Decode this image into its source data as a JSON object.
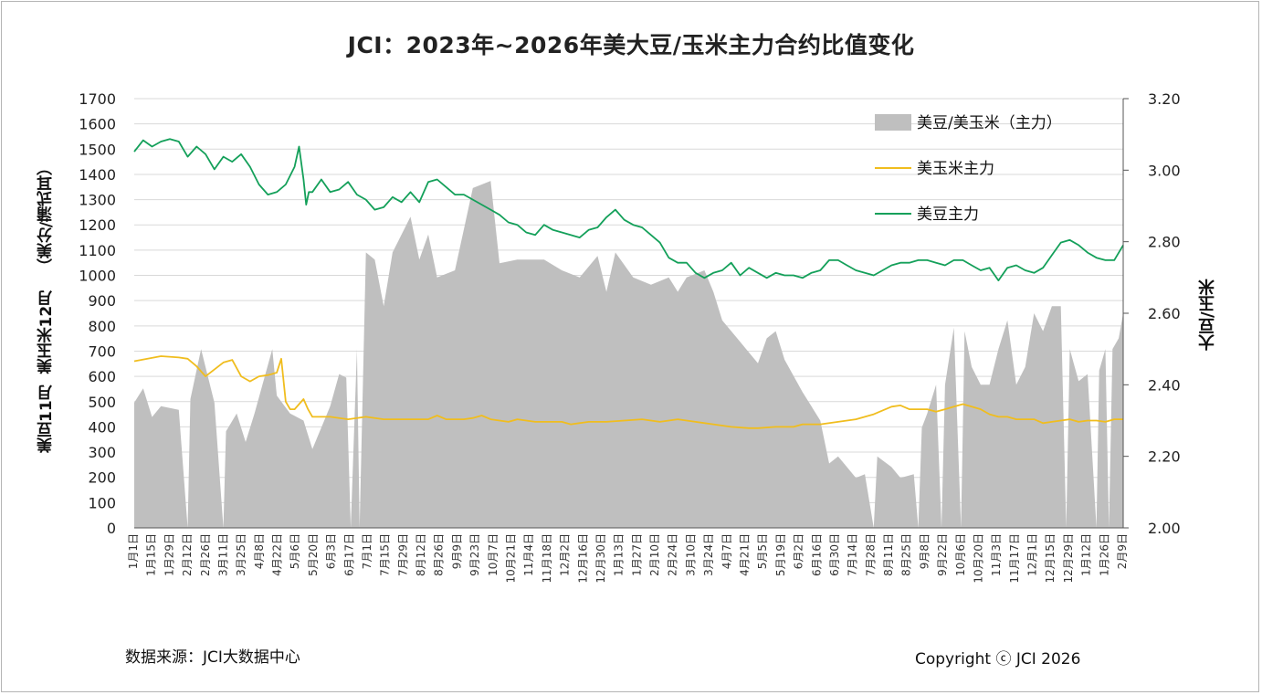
{
  "chart_data": {
    "type": "area+line",
    "title": "JCI：2023年~2026年美大豆/玉米主力合约比值变化",
    "ylabel_left": "美豆11月  美玉米12月   （美分/蒲式耳）",
    "ylabel_right": "大豆/玉米",
    "source": "数据来源：JCI大数据中心",
    "copyright": "Copyright ⓒ JCI 2026",
    "left_axis": {
      "min": 0,
      "max": 1700,
      "step": 100,
      "ticks": [
        "0",
        "100",
        "200",
        "300",
        "400",
        "500",
        "600",
        "700",
        "800",
        "900",
        "1000",
        "1100",
        "1200",
        "1300",
        "1400",
        "1500",
        "1600",
        "1700"
      ]
    },
    "right_axis": {
      "min": 2.0,
      "max": 3.2,
      "step": 0.2,
      "ticks": [
        "2.00",
        "2.20",
        "2.40",
        "2.60",
        "2.80",
        "3.00",
        "3.20"
      ]
    },
    "x_labels": [
      "1月1日",
      "1月15日",
      "1月29日",
      "2月12日",
      "2月26日",
      "3月11日",
      "3月25日",
      "4月8日",
      "4月22日",
      "5月6日",
      "5月20日",
      "6月3日",
      "6月17日",
      "7月1日",
      "7月15日",
      "7月29日",
      "8月12日",
      "8月26日",
      "9月9日",
      "9月23日",
      "10月7日",
      "10月21日",
      "11月4日",
      "11月18日",
      "12月2日",
      "12月16日",
      "12月30日",
      "1月13日",
      "1月27日",
      "2月10日",
      "2月24日",
      "3月10日",
      "3月24日",
      "4月7日",
      "4月21日",
      "5月5日",
      "5月19日",
      "6月2日",
      "6月16日",
      "6月30日",
      "7月14日",
      "7月28日",
      "8月11日",
      "8月25日",
      "9月8日",
      "9月22日",
      "10月6日",
      "10月20日",
      "11月3日",
      "11月17日",
      "12月1日",
      "12月15日",
      "12月29日",
      "1月12日",
      "1月26日",
      "2月9日"
    ],
    "series": [
      {
        "name": "美豆/美玉米（主力）",
        "type": "area",
        "axis": "right",
        "color": "#bfbfbf",
        "points": [
          [
            0,
            2.35
          ],
          [
            1,
            2.39
          ],
          [
            2,
            2.31
          ],
          [
            3,
            2.34
          ],
          [
            5,
            2.33
          ],
          [
            6,
            2.0
          ],
          [
            6.3,
            2.36
          ],
          [
            7.5,
            2.5
          ],
          [
            9,
            2.35
          ],
          [
            10,
            2.0
          ],
          [
            10.3,
            2.27
          ],
          [
            11.5,
            2.32
          ],
          [
            12.5,
            2.24
          ],
          [
            13.5,
            2.32
          ],
          [
            15.5,
            2.5
          ],
          [
            16,
            2.37
          ],
          [
            17.5,
            2.32
          ],
          [
            19,
            2.3
          ],
          [
            20,
            2.22
          ],
          [
            22,
            2.34
          ],
          [
            23,
            2.43
          ],
          [
            23.8,
            2.42
          ],
          [
            24.3,
            2.0
          ],
          [
            25,
            2.5
          ],
          [
            25.3,
            2.0
          ],
          [
            26,
            2.77
          ],
          [
            27,
            2.75
          ],
          [
            28,
            2.62
          ],
          [
            29,
            2.77
          ],
          [
            31,
            2.87
          ],
          [
            32,
            2.75
          ],
          [
            33,
            2.82
          ],
          [
            34,
            2.7
          ],
          [
            36,
            2.72
          ],
          [
            38,
            2.95
          ],
          [
            40,
            2.97
          ],
          [
            41,
            2.74
          ],
          [
            43,
            2.75
          ],
          [
            46,
            2.75
          ],
          [
            48,
            2.72
          ],
          [
            50,
            2.7
          ],
          [
            52,
            2.76
          ],
          [
            53,
            2.66
          ],
          [
            54,
            2.77
          ],
          [
            56,
            2.7
          ],
          [
            58,
            2.68
          ],
          [
            60,
            2.7
          ],
          [
            61,
            2.66
          ],
          [
            62,
            2.7
          ],
          [
            64,
            2.72
          ],
          [
            65,
            2.66
          ],
          [
            66,
            2.58
          ],
          [
            68,
            2.52
          ],
          [
            70,
            2.46
          ],
          [
            71,
            2.53
          ],
          [
            72,
            2.55
          ],
          [
            73,
            2.47
          ],
          [
            75,
            2.38
          ],
          [
            77,
            2.3
          ],
          [
            78,
            2.18
          ],
          [
            79,
            2.2
          ],
          [
            81,
            2.14
          ],
          [
            82,
            2.15
          ],
          [
            83,
            2.0
          ],
          [
            83.4,
            2.2
          ],
          [
            85,
            2.17
          ],
          [
            86,
            2.14
          ],
          [
            87.5,
            2.15
          ],
          [
            88,
            2.0
          ],
          [
            88.4,
            2.28
          ],
          [
            89,
            2.32
          ],
          [
            90,
            2.4
          ],
          [
            90.6,
            2.0
          ],
          [
            91,
            2.4
          ],
          [
            92,
            2.56
          ],
          [
            92.8,
            2.0
          ],
          [
            93.2,
            2.55
          ],
          [
            94,
            2.45
          ],
          [
            95,
            2.4
          ],
          [
            96,
            2.4
          ],
          [
            97,
            2.5
          ],
          [
            98,
            2.58
          ],
          [
            99,
            2.4
          ],
          [
            100,
            2.45
          ],
          [
            101,
            2.6
          ],
          [
            102,
            2.55
          ],
          [
            103,
            2.62
          ],
          [
            104,
            2.62
          ],
          [
            104.6,
            2.0
          ],
          [
            105,
            2.5
          ],
          [
            106,
            2.41
          ],
          [
            107,
            2.43
          ],
          [
            108,
            2.0
          ],
          [
            108.3,
            2.44
          ],
          [
            109,
            2.5
          ],
          [
            109.4,
            2.0
          ],
          [
            109.8,
            2.5
          ],
          [
            110.5,
            2.53
          ],
          [
            111,
            2.6
          ]
        ]
      },
      {
        "name": "美玉米主力",
        "type": "line",
        "axis": "left",
        "color": "#f0bd1e",
        "points": [
          [
            0,
            660
          ],
          [
            3,
            680
          ],
          [
            5,
            675
          ],
          [
            6,
            670
          ],
          [
            7,
            640
          ],
          [
            8,
            600
          ],
          [
            10,
            655
          ],
          [
            11,
            665
          ],
          [
            12,
            600
          ],
          [
            13,
            580
          ],
          [
            14,
            600
          ],
          [
            15,
            605
          ],
          [
            16,
            615
          ],
          [
            16.5,
            670
          ],
          [
            17,
            500
          ],
          [
            17.5,
            470
          ],
          [
            18,
            470
          ],
          [
            19,
            510
          ],
          [
            19.5,
            470
          ],
          [
            20,
            440
          ],
          [
            22,
            440
          ],
          [
            24,
            430
          ],
          [
            26,
            440
          ],
          [
            28,
            430
          ],
          [
            30,
            430
          ],
          [
            31,
            430
          ],
          [
            33,
            430
          ],
          [
            34,
            445
          ],
          [
            35,
            430
          ],
          [
            37,
            430
          ],
          [
            38,
            435
          ],
          [
            39,
            445
          ],
          [
            40,
            430
          ],
          [
            42,
            420
          ],
          [
            43,
            430
          ],
          [
            45,
            420
          ],
          [
            47,
            420
          ],
          [
            48,
            420
          ],
          [
            49,
            410
          ],
          [
            51,
            420
          ],
          [
            53,
            420
          ],
          [
            55,
            425
          ],
          [
            57,
            430
          ],
          [
            59,
            420
          ],
          [
            61,
            430
          ],
          [
            63,
            420
          ],
          [
            65,
            410
          ],
          [
            67,
            400
          ],
          [
            69,
            395
          ],
          [
            70,
            395
          ],
          [
            72,
            400
          ],
          [
            74,
            400
          ],
          [
            75,
            410
          ],
          [
            77,
            410
          ],
          [
            79,
            420
          ],
          [
            81,
            430
          ],
          [
            83,
            450
          ],
          [
            85,
            480
          ],
          [
            86,
            485
          ],
          [
            87,
            470
          ],
          [
            89,
            470
          ],
          [
            90,
            460
          ],
          [
            91,
            470
          ],
          [
            92,
            480
          ],
          [
            93,
            490
          ],
          [
            94,
            480
          ],
          [
            95,
            470
          ],
          [
            96,
            450
          ],
          [
            97,
            440
          ],
          [
            98,
            440
          ],
          [
            99,
            430
          ],
          [
            100,
            430
          ],
          [
            101,
            430
          ],
          [
            102,
            415
          ],
          [
            103,
            420
          ],
          [
            104,
            425
          ],
          [
            105,
            430
          ],
          [
            106,
            420
          ],
          [
            107,
            425
          ],
          [
            108,
            425
          ],
          [
            109,
            420
          ],
          [
            110,
            430
          ],
          [
            111,
            430
          ]
        ]
      },
      {
        "name": "美豆主力",
        "type": "line",
        "axis": "left",
        "color": "#14a05a",
        "points": [
          [
            0,
            1490
          ],
          [
            1,
            1535
          ],
          [
            2,
            1510
          ],
          [
            3,
            1530
          ],
          [
            4,
            1540
          ],
          [
            5,
            1530
          ],
          [
            6,
            1470
          ],
          [
            7,
            1510
          ],
          [
            8,
            1480
          ],
          [
            9,
            1420
          ],
          [
            10,
            1470
          ],
          [
            11,
            1450
          ],
          [
            12,
            1480
          ],
          [
            13,
            1430
          ],
          [
            14,
            1360
          ],
          [
            15,
            1320
          ],
          [
            16,
            1330
          ],
          [
            17,
            1360
          ],
          [
            18,
            1430
          ],
          [
            18.5,
            1510
          ],
          [
            19,
            1380
          ],
          [
            19.3,
            1280
          ],
          [
            19.6,
            1330
          ],
          [
            20,
            1330
          ],
          [
            21,
            1380
          ],
          [
            22,
            1330
          ],
          [
            23,
            1340
          ],
          [
            24,
            1370
          ],
          [
            25,
            1320
          ],
          [
            26,
            1300
          ],
          [
            27,
            1260
          ],
          [
            28,
            1270
          ],
          [
            29,
            1310
          ],
          [
            30,
            1290
          ],
          [
            31,
            1330
          ],
          [
            32,
            1290
          ],
          [
            33,
            1370
          ],
          [
            34,
            1380
          ],
          [
            35,
            1350
          ],
          [
            36,
            1320
          ],
          [
            37,
            1320
          ],
          [
            38,
            1300
          ],
          [
            40,
            1260
          ],
          [
            41,
            1240
          ],
          [
            42,
            1210
          ],
          [
            43,
            1200
          ],
          [
            44,
            1170
          ],
          [
            45,
            1160
          ],
          [
            46,
            1200
          ],
          [
            47,
            1180
          ],
          [
            48,
            1170
          ],
          [
            50,
            1150
          ],
          [
            51,
            1180
          ],
          [
            52,
            1190
          ],
          [
            53,
            1230
          ],
          [
            54,
            1260
          ],
          [
            55,
            1220
          ],
          [
            56,
            1200
          ],
          [
            57,
            1190
          ],
          [
            58,
            1160
          ],
          [
            59,
            1130
          ],
          [
            60,
            1070
          ],
          [
            61,
            1050
          ],
          [
            62,
            1050
          ],
          [
            63,
            1010
          ],
          [
            64,
            990
          ],
          [
            65,
            1010
          ],
          [
            66,
            1020
          ],
          [
            67,
            1050
          ],
          [
            68,
            1000
          ],
          [
            69,
            1030
          ],
          [
            70,
            1010
          ],
          [
            71,
            990
          ],
          [
            72,
            1010
          ],
          [
            73,
            1000
          ],
          [
            74,
            1000
          ],
          [
            75,
            990
          ],
          [
            76,
            1010
          ],
          [
            77,
            1020
          ],
          [
            78,
            1060
          ],
          [
            79,
            1060
          ],
          [
            80,
            1040
          ],
          [
            81,
            1020
          ],
          [
            82,
            1010
          ],
          [
            83,
            1000
          ],
          [
            84,
            1020
          ],
          [
            85,
            1040
          ],
          [
            86,
            1050
          ],
          [
            87,
            1050
          ],
          [
            88,
            1060
          ],
          [
            89,
            1060
          ],
          [
            90,
            1050
          ],
          [
            91,
            1040
          ],
          [
            92,
            1060
          ],
          [
            93,
            1060
          ],
          [
            94,
            1040
          ],
          [
            95,
            1020
          ],
          [
            96,
            1030
          ],
          [
            97,
            980
          ],
          [
            98,
            1030
          ],
          [
            99,
            1040
          ],
          [
            100,
            1020
          ],
          [
            101,
            1010
          ],
          [
            102,
            1030
          ],
          [
            103,
            1080
          ],
          [
            104,
            1130
          ],
          [
            105,
            1140
          ],
          [
            106,
            1120
          ],
          [
            107,
            1090
          ],
          [
            108,
            1070
          ],
          [
            109,
            1060
          ],
          [
            110,
            1060
          ],
          [
            111,
            1120
          ]
        ]
      }
    ],
    "legend": {
      "position": "top-right"
    },
    "grid": "horizontal"
  }
}
